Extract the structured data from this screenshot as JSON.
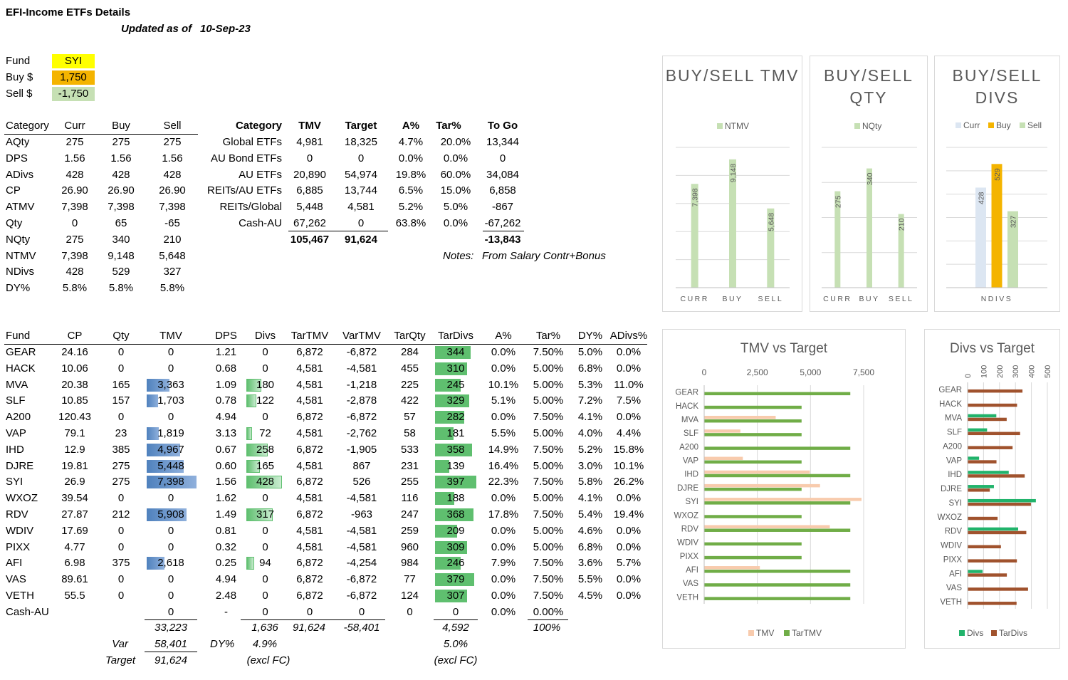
{
  "title": "EFI-Income ETFs Details",
  "updated_label": "Updated as of",
  "updated_date": "10-Sep-23",
  "inputs": {
    "fund_label": "Fund",
    "fund_value": "SYI",
    "buy_label": "Buy $",
    "buy_value": "1,750",
    "sell_label": "Sell $",
    "sell_value": "-1,750"
  },
  "colors": {
    "yellow": "#ffff00",
    "orange": "#f4b400",
    "light_green": "#c6e0b4",
    "blue_bar": "#4f81bd",
    "green_bar": "#5fbf6f"
  },
  "summary": {
    "headers": [
      "Category",
      "Curr",
      "Buy",
      "Sell"
    ],
    "rows": [
      [
        "AQty",
        "275",
        "275",
        "275"
      ],
      [
        "DPS",
        "1.56",
        "1.56",
        "1.56"
      ],
      [
        "ADivs",
        "428",
        "428",
        "428"
      ],
      [
        "CP",
        "26.90",
        "26.90",
        "26.90"
      ],
      [
        "ATMV",
        "7,398",
        "7,398",
        "7,398"
      ],
      [
        "Qty",
        "0",
        "65",
        "-65"
      ],
      [
        "NQty",
        "275",
        "340",
        "210"
      ],
      [
        "NTMV",
        "7,398",
        "9,148",
        "5,648"
      ],
      [
        "NDivs",
        "428",
        "529",
        "327"
      ],
      [
        "DY%",
        "5.8%",
        "5.8%",
        "5.8%"
      ]
    ]
  },
  "allocation": {
    "headers": [
      "Category",
      "TMV",
      "Target",
      "A%",
      "Tar%",
      "To Go"
    ],
    "rows": [
      [
        "Global ETFs",
        "4,981",
        "18,325",
        "4.7%",
        "20.0%",
        "13,344"
      ],
      [
        "AU Bond ETFs",
        "0",
        "0",
        "0.0%",
        "0.0%",
        "0"
      ],
      [
        "AU ETFs",
        "20,890",
        "54,974",
        "19.8%",
        "60.0%",
        "34,084"
      ],
      [
        "REITs/AU ETFs",
        "6,885",
        "13,744",
        "6.5%",
        "15.0%",
        "6,858"
      ],
      [
        "REITs/Global",
        "5,448",
        "4,581",
        "5.2%",
        "5.0%",
        "-867"
      ],
      [
        "Cash-AU",
        "67,262",
        "0",
        "63.8%",
        "0.0%",
        "-67,262"
      ]
    ],
    "totals": {
      "tmv": "105,467",
      "target": "91,624",
      "togo": "-13,843"
    },
    "notes_label": "Notes:",
    "notes_text": "From Salary Contr+Bonus"
  },
  "funds": {
    "headers": [
      "Fund",
      "CP",
      "Qty",
      "TMV",
      "DPS",
      "Divs",
      "TarTMV",
      "VarTMV",
      "TarQty",
      "TarDivs",
      "A%",
      "Tar%",
      "DY%",
      "ADivs%"
    ],
    "rows": [
      [
        "GEAR",
        "24.16",
        "0",
        "0",
        "1.21",
        "0",
        "6,872",
        "-6,872",
        "284",
        "344",
        "0.0%",
        "7.50%",
        "5.0%",
        "0.0%"
      ],
      [
        "HACK",
        "10.06",
        "0",
        "0",
        "0.68",
        "0",
        "4,581",
        "-4,581",
        "455",
        "310",
        "0.0%",
        "5.00%",
        "6.8%",
        "0.0%"
      ],
      [
        "MVA",
        "20.38",
        "165",
        "3,363",
        "1.09",
        "180",
        "4,581",
        "-1,218",
        "225",
        "245",
        "10.1%",
        "5.00%",
        "5.3%",
        "11.0%"
      ],
      [
        "SLF",
        "10.85",
        "157",
        "1,703",
        "0.78",
        "122",
        "4,581",
        "-2,878",
        "422",
        "329",
        "5.1%",
        "5.00%",
        "7.2%",
        "7.5%"
      ],
      [
        "A200",
        "120.43",
        "0",
        "0",
        "4.94",
        "0",
        "6,872",
        "-6,872",
        "57",
        "282",
        "0.0%",
        "7.50%",
        "4.1%",
        "0.0%"
      ],
      [
        "VAP",
        "79.1",
        "23",
        "1,819",
        "3.13",
        "72",
        "4,581",
        "-2,762",
        "58",
        "181",
        "5.5%",
        "5.00%",
        "4.0%",
        "4.4%"
      ],
      [
        "IHD",
        "12.9",
        "385",
        "4,967",
        "0.67",
        "258",
        "6,872",
        "-1,905",
        "533",
        "358",
        "14.9%",
        "7.50%",
        "5.2%",
        "15.8%"
      ],
      [
        "DJRE",
        "19.81",
        "275",
        "5,448",
        "0.60",
        "165",
        "4,581",
        "867",
        "231",
        "139",
        "16.4%",
        "5.00%",
        "3.0%",
        "10.1%"
      ],
      [
        "SYI",
        "26.9",
        "275",
        "7,398",
        "1.56",
        "428",
        "6,872",
        "526",
        "255",
        "397",
        "22.3%",
        "7.50%",
        "5.8%",
        "26.2%"
      ],
      [
        "WXOZ",
        "39.54",
        "0",
        "0",
        "1.62",
        "0",
        "4,581",
        "-4,581",
        "116",
        "188",
        "0.0%",
        "5.00%",
        "4.1%",
        "0.0%"
      ],
      [
        "RDV",
        "27.87",
        "212",
        "5,908",
        "1.49",
        "317",
        "6,872",
        "-963",
        "247",
        "368",
        "17.8%",
        "7.50%",
        "5.4%",
        "19.4%"
      ],
      [
        "WDIV",
        "17.69",
        "0",
        "0",
        "0.81",
        "0",
        "4,581",
        "-4,581",
        "259",
        "209",
        "0.0%",
        "5.00%",
        "4.6%",
        "0.0%"
      ],
      [
        "PIXX",
        "4.77",
        "0",
        "0",
        "0.32",
        "0",
        "4,581",
        "-4,581",
        "960",
        "309",
        "0.0%",
        "5.00%",
        "6.8%",
        "0.0%"
      ],
      [
        "AFI",
        "6.98",
        "375",
        "2,618",
        "0.25",
        "94",
        "6,872",
        "-4,254",
        "984",
        "246",
        "7.9%",
        "7.50%",
        "3.6%",
        "5.7%"
      ],
      [
        "VAS",
        "89.61",
        "0",
        "0",
        "4.94",
        "0",
        "6,872",
        "-6,872",
        "77",
        "379",
        "0.0%",
        "7.50%",
        "5.5%",
        "0.0%"
      ],
      [
        "VETH",
        "55.5",
        "0",
        "0",
        "2.48",
        "0",
        "6,872",
        "-6,872",
        "124",
        "307",
        "0.0%",
        "7.50%",
        "4.5%",
        "0.0%"
      ],
      [
        "Cash-AU",
        "",
        "",
        "0",
        "-",
        "0",
        "0",
        "0",
        "0",
        "0",
        "0.0%",
        "0.00%",
        "",
        ""
      ]
    ],
    "totals": {
      "tmv": "33,223",
      "divs": "1,636",
      "tartmv": "91,624",
      "vartmv": "-58,401",
      "tardivs": "4,592",
      "tarpct": "100%"
    },
    "var_label": "Var",
    "var_value": "58,401",
    "target_label": "Target",
    "target_value": "91,624",
    "dy_label": "DY%",
    "dy_value": "4.9%",
    "dy_note": "(excl FC)",
    "tar_dy_value": "5.0%",
    "tar_dy_note": "(excl FC)"
  },
  "chart_data": [
    {
      "type": "bar",
      "title": "BUY/SELL TMV",
      "categories": [
        "CURR",
        "BUY",
        "SELL"
      ],
      "series": [
        {
          "name": "NTMV",
          "values": [
            7398,
            9148,
            5648
          ]
        }
      ],
      "ylim": [
        0,
        10000
      ]
    },
    {
      "type": "bar",
      "title": "BUY/SELL QTY",
      "categories": [
        "CURR",
        "BUY",
        "SELL"
      ],
      "series": [
        {
          "name": "NQty",
          "values": [
            275,
            340,
            210
          ]
        }
      ],
      "ylim": [
        0,
        400
      ]
    },
    {
      "type": "bar",
      "title": "BUY/SELL DIVS",
      "categories": [
        "NDIVS"
      ],
      "series": [
        {
          "name": "Curr",
          "values": [
            428
          ]
        },
        {
          "name": "Buy",
          "values": [
            529
          ]
        },
        {
          "name": "Sell",
          "values": [
            327
          ]
        }
      ],
      "ylim": [
        0,
        600
      ]
    },
    {
      "type": "bar",
      "orientation": "horizontal",
      "title": "TMV vs Target",
      "categories": [
        "GEAR",
        "HACK",
        "MVA",
        "SLF",
        "A200",
        "VAP",
        "IHD",
        "DJRE",
        "SYI",
        "WXOZ",
        "RDV",
        "WDIV",
        "PIXX",
        "AFI",
        "VAS",
        "VETH"
      ],
      "series": [
        {
          "name": "TMV",
          "values": [
            0,
            0,
            3363,
            1703,
            0,
            1819,
            4967,
            5448,
            7398,
            0,
            5908,
            0,
            0,
            2618,
            0,
            0
          ]
        },
        {
          "name": "TarTMV",
          "values": [
            6872,
            4581,
            4581,
            4581,
            6872,
            4581,
            6872,
            4581,
            6872,
            4581,
            6872,
            4581,
            4581,
            6872,
            6872,
            6872
          ]
        }
      ],
      "xticks": [
        "0",
        "2,500",
        "5,000",
        "7,500"
      ],
      "xlim": [
        0,
        7500
      ]
    },
    {
      "type": "bar",
      "orientation": "horizontal",
      "title": "Divs vs Target",
      "categories": [
        "GEAR",
        "HACK",
        "MVA",
        "SLF",
        "A200",
        "VAP",
        "IHD",
        "DJRE",
        "SYI",
        "WXOZ",
        "RDV",
        "WDIV",
        "PIXX",
        "AFI",
        "VAS",
        "VETH"
      ],
      "series": [
        {
          "name": "Divs",
          "values": [
            0,
            0,
            180,
            122,
            0,
            72,
            258,
            165,
            428,
            0,
            317,
            0,
            0,
            94,
            0,
            0
          ]
        },
        {
          "name": "TarDivs",
          "values": [
            344,
            310,
            245,
            329,
            282,
            181,
            358,
            139,
            397,
            188,
            368,
            209,
            309,
            246,
            379,
            307
          ]
        }
      ],
      "xticks": [
        "0",
        "100",
        "200",
        "300",
        "400",
        "500"
      ],
      "xlim": [
        0,
        500
      ]
    }
  ]
}
